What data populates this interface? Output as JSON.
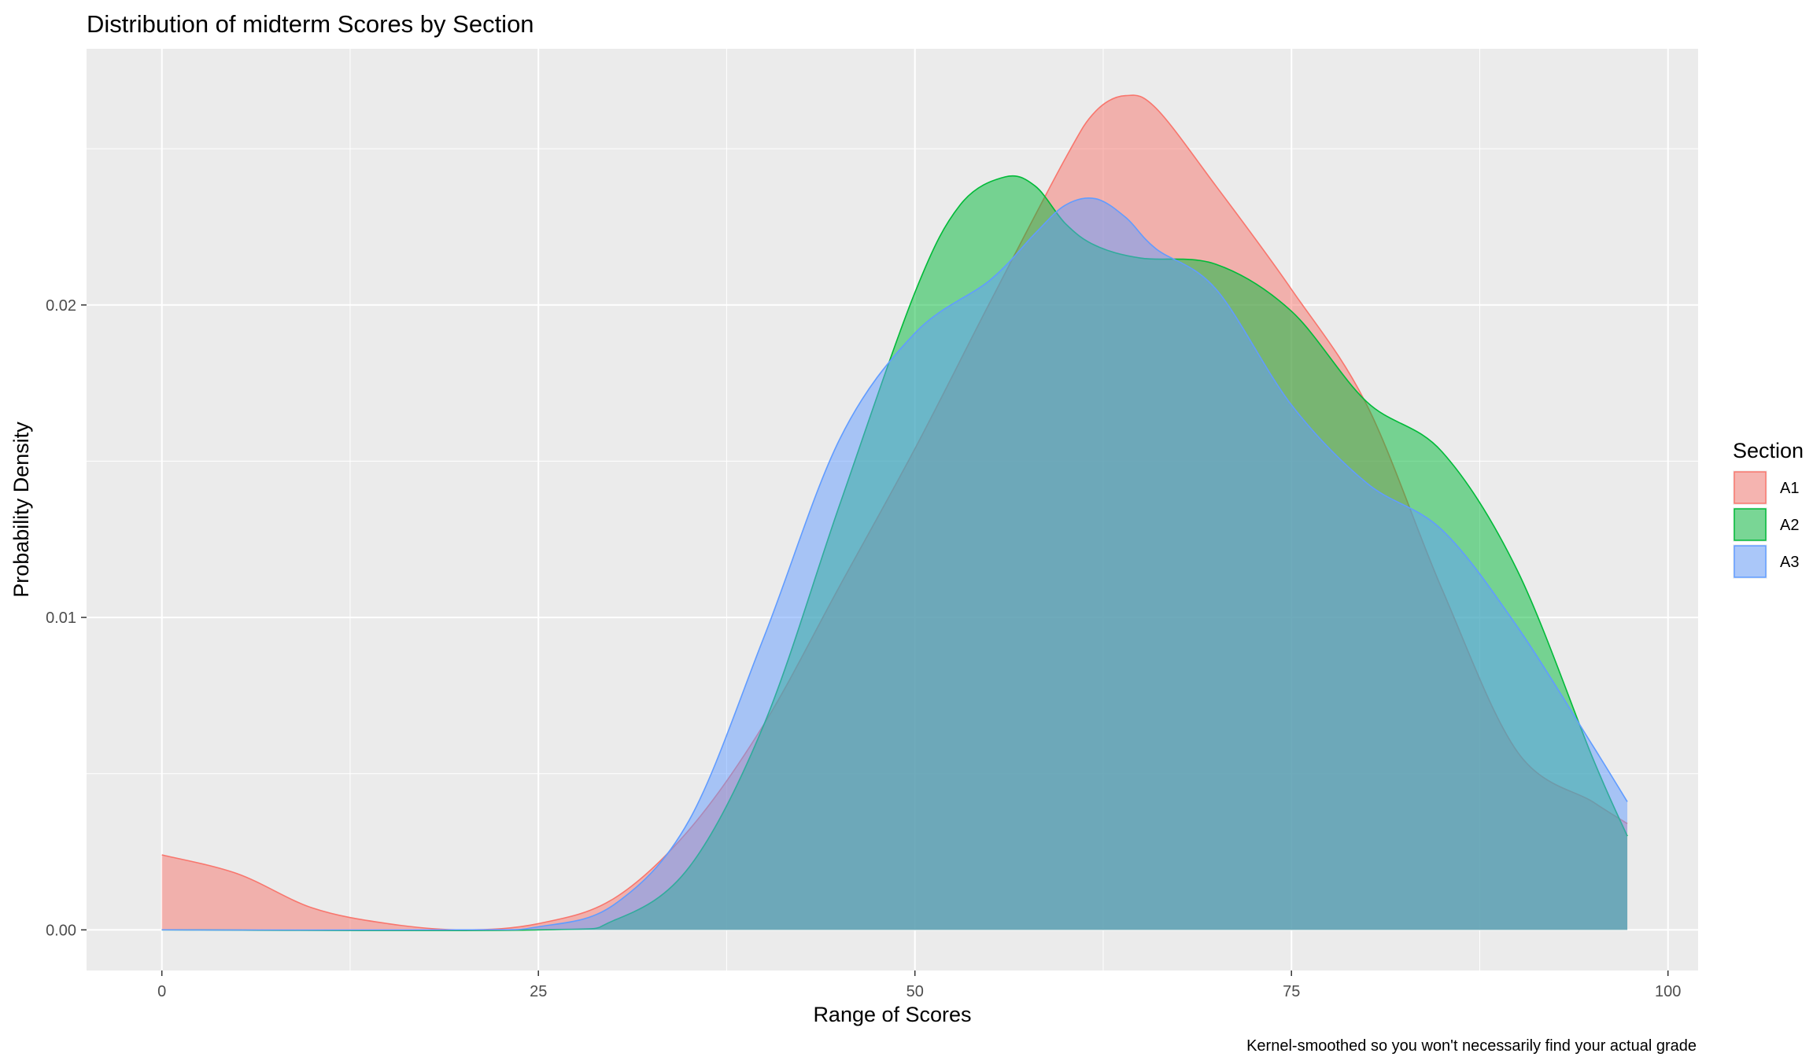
{
  "chart_data": {
    "type": "area",
    "title": "Distribution of midterm Scores by Section",
    "xlabel": "Range of Scores",
    "ylabel": "Probability Density",
    "caption": "Kernel-smoothed so you won't necessarily find your actual grade",
    "xlim": [
      -5,
      102
    ],
    "ylim": [
      -0.0013,
      0.0282
    ],
    "x_ticks": [
      0,
      25,
      50,
      75,
      100
    ],
    "x_tick_labels": [
      "0",
      "25",
      "50",
      "75",
      "100"
    ],
    "y_ticks": [
      0.0,
      0.01,
      0.02
    ],
    "y_tick_labels": [
      "0.00",
      "0.01",
      "0.02"
    ],
    "grid": true,
    "legend": {
      "title": "Section",
      "position": "right"
    },
    "series": [
      {
        "name": "A1",
        "color": "#F8766D",
        "x": [
          0,
          5,
          10,
          15,
          20,
          25,
          30,
          35,
          40,
          45,
          50,
          55,
          60,
          62,
          64,
          66,
          70,
          75,
          80,
          85,
          90,
          95,
          97.3
        ],
        "y": [
          0.0024,
          0.0018,
          0.0007,
          0.0002,
          0.0,
          0.0002,
          0.001,
          0.0032,
          0.0066,
          0.011,
          0.0154,
          0.0201,
          0.0247,
          0.0262,
          0.0267,
          0.0263,
          0.0238,
          0.0205,
          0.0168,
          0.0109,
          0.0057,
          0.0041,
          0.0034
        ]
      },
      {
        "name": "A2",
        "color": "#00BA38",
        "x": [
          0,
          25,
          30,
          35,
          40,
          45,
          50,
          53,
          56,
          58,
          60,
          62,
          65,
          70,
          75,
          80,
          85,
          90,
          95,
          97.3
        ],
        "y": [
          0.0,
          0.0,
          0.0003,
          0.002,
          0.0066,
          0.0136,
          0.0204,
          0.0232,
          0.0241,
          0.0238,
          0.0226,
          0.0219,
          0.0215,
          0.0213,
          0.0198,
          0.0169,
          0.0153,
          0.0115,
          0.0055,
          0.003
        ]
      },
      {
        "name": "A3",
        "color": "#619CFF",
        "x": [
          0,
          20,
          25,
          30,
          35,
          40,
          45,
          50,
          55,
          58,
          60,
          62,
          64,
          66,
          70,
          75,
          80,
          85,
          90,
          95,
          97.3
        ],
        "y": [
          0.0,
          0.0,
          0.0001,
          0.0008,
          0.0035,
          0.0094,
          0.0157,
          0.0191,
          0.0208,
          0.0223,
          0.0232,
          0.0234,
          0.0228,
          0.0218,
          0.0205,
          0.0168,
          0.0143,
          0.0128,
          0.0097,
          0.0059,
          0.0041
        ]
      }
    ]
  }
}
